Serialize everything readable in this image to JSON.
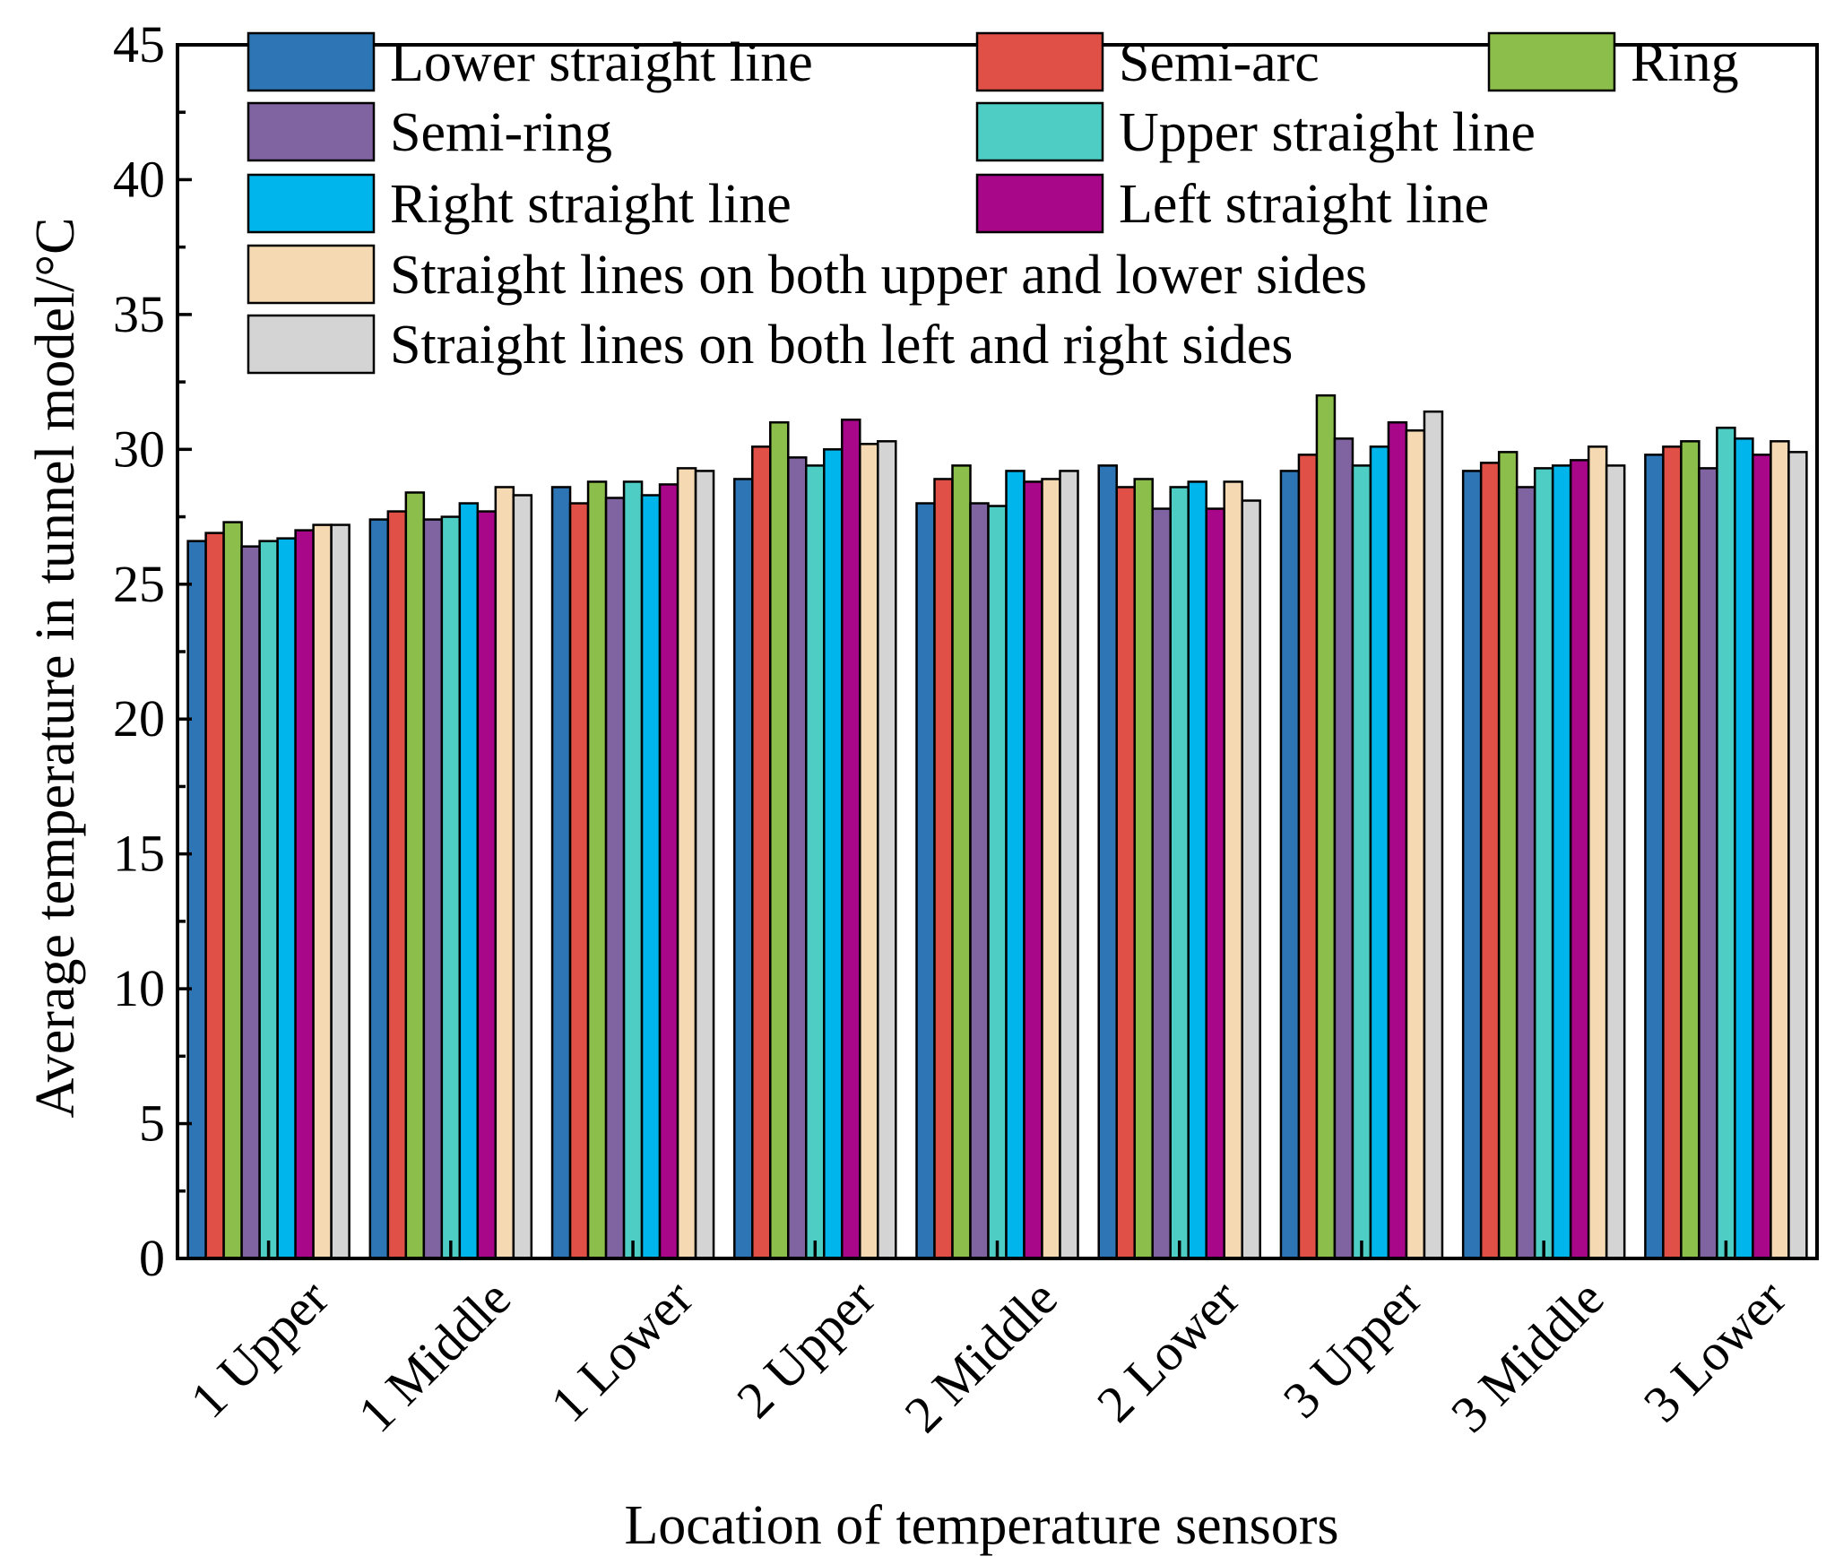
{
  "chart_data": {
    "type": "bar",
    "title": "",
    "xlabel": "Location of temperature sensors",
    "ylabel": "Average temperature in tunnel model/°C",
    "ylim": [
      0,
      45
    ],
    "yticks": [
      0,
      5,
      10,
      15,
      20,
      25,
      30,
      35,
      40,
      45
    ],
    "categories": [
      "1 Upper",
      "1 Middle",
      "1 Lower",
      "2 Upper",
      "2 Middle",
      "2 Lower",
      "3 Upper",
      "3 Middle",
      "3 Lower"
    ],
    "legend_position": "top",
    "series": [
      {
        "name": "Lower straight line",
        "color": "#2E75B6",
        "values": [
          26.6,
          27.4,
          28.6,
          28.9,
          28.0,
          29.4,
          29.2,
          29.2,
          29.8
        ]
      },
      {
        "name": "Semi-arc",
        "color": "#E15046",
        "values": [
          26.9,
          27.7,
          28.0,
          30.1,
          28.9,
          28.6,
          29.8,
          29.5,
          30.1
        ]
      },
      {
        "name": "Ring",
        "color": "#8BBE4A",
        "values": [
          27.3,
          28.4,
          28.8,
          31.0,
          29.4,
          28.9,
          32.0,
          29.9,
          30.3
        ]
      },
      {
        "name": "Semi-ring",
        "color": "#8064A2",
        "values": [
          26.4,
          27.4,
          28.2,
          29.7,
          28.0,
          27.8,
          30.4,
          28.6,
          29.3
        ]
      },
      {
        "name": "Upper straight line",
        "color": "#4ECDC4",
        "values": [
          26.6,
          27.5,
          28.8,
          29.4,
          27.9,
          28.6,
          29.4,
          29.3,
          30.8
        ]
      },
      {
        "name": "Right straight line",
        "color": "#00B4EC",
        "values": [
          26.7,
          28.0,
          28.3,
          30.0,
          29.2,
          28.8,
          30.1,
          29.4,
          30.4
        ]
      },
      {
        "name": "Left straight line",
        "color": "#A9078A",
        "values": [
          27.0,
          27.7,
          28.7,
          31.1,
          28.8,
          27.8,
          31.0,
          29.6,
          29.8
        ]
      },
      {
        "name": "Straight lines on both upper and lower sides",
        "color": "#F5D9B3",
        "values": [
          27.2,
          28.6,
          29.3,
          30.2,
          28.9,
          28.8,
          30.7,
          30.1,
          30.3
        ]
      },
      {
        "name": "Straight lines on both left and right sides",
        "color": "#D4D4D4",
        "values": [
          27.2,
          28.3,
          29.2,
          30.3,
          29.2,
          28.1,
          31.4,
          29.4,
          29.9
        ]
      }
    ]
  }
}
